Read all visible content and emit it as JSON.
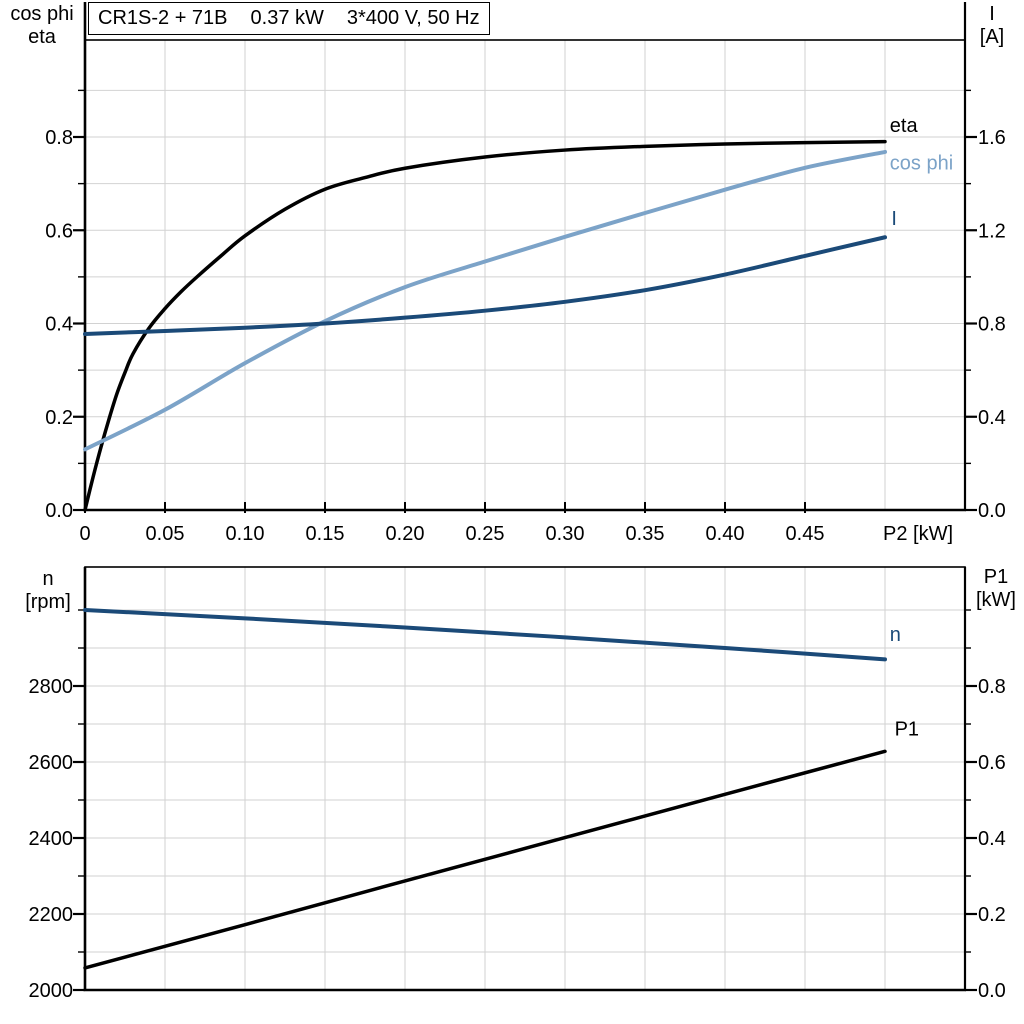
{
  "header": {
    "model": "CR1S-2 + 71B",
    "power": "0.37 kW",
    "supply": "3*400 V, 50 Hz"
  },
  "colors": {
    "curve_black": "#000000",
    "curve_dark_blue": "#1b4a78",
    "curve_light_blue": "#7ca3c8",
    "grid": "#d2d2d2",
    "axis": "#000000"
  },
  "chart_data": [
    {
      "type": "line",
      "position": "top",
      "x_axis": {
        "label": "P2 [kW]",
        "range": [
          0,
          0.55
        ],
        "grid_step": 0.05,
        "tick_values": [
          0,
          0.05,
          0.1,
          0.15,
          0.2,
          0.25,
          0.3,
          0.35,
          0.4,
          0.45
        ],
        "tick_labels": [
          "0",
          "0.05",
          "0.10",
          "0.15",
          "0.20",
          "0.25",
          "0.30",
          "0.35",
          "0.40",
          "0.45"
        ]
      },
      "left_axis": {
        "title_lines": [
          "cos phi",
          "eta"
        ],
        "range": [
          0,
          1.0
        ],
        "tick_values": [
          0.0,
          0.2,
          0.4,
          0.6,
          0.8
        ],
        "tick_labels": [
          "0.0",
          "0.2",
          "0.4",
          "0.6",
          "0.8"
        ],
        "minor_step": 0.1
      },
      "right_axis": {
        "title_lines": [
          "I",
          "[A]"
        ],
        "range": [
          0,
          2.0
        ],
        "tick_values": [
          0.0,
          0.4,
          0.8,
          1.2,
          1.6
        ],
        "tick_labels": [
          "0.0",
          "0.4",
          "0.8",
          "1.2",
          "1.6"
        ],
        "minor_step": 0.2
      },
      "series": [
        {
          "name": "eta",
          "label": "eta",
          "axis": "left",
          "color": "#000000",
          "width": 3.5,
          "label_at": [
            0.503,
            0.826
          ],
          "points": [
            [
              0,
              0
            ],
            [
              0.005,
              0.07
            ],
            [
              0.01,
              0.135
            ],
            [
              0.015,
              0.195
            ],
            [
              0.02,
              0.25
            ],
            [
              0.025,
              0.295
            ],
            [
              0.03,
              0.335
            ],
            [
              0.04,
              0.39
            ],
            [
              0.05,
              0.432
            ],
            [
              0.06,
              0.468
            ],
            [
              0.07,
              0.5
            ],
            [
              0.085,
              0.545
            ],
            [
              0.1,
              0.588
            ],
            [
              0.125,
              0.645
            ],
            [
              0.15,
              0.688
            ],
            [
              0.175,
              0.713
            ],
            [
              0.2,
              0.733
            ],
            [
              0.25,
              0.757
            ],
            [
              0.3,
              0.772
            ],
            [
              0.35,
              0.78
            ],
            [
              0.4,
              0.785
            ],
            [
              0.45,
              0.788
            ],
            [
              0.5,
              0.79
            ]
          ]
        },
        {
          "name": "cos_phi",
          "label": "cos phi",
          "axis": "left",
          "color": "#7ca3c8",
          "width": 4,
          "label_at": [
            0.503,
            0.745
          ],
          "points": [
            [
              0,
              0.13
            ],
            [
              0.05,
              0.215
            ],
            [
              0.1,
              0.315
            ],
            [
              0.15,
              0.405
            ],
            [
              0.2,
              0.478
            ],
            [
              0.25,
              0.533
            ],
            [
              0.3,
              0.586
            ],
            [
              0.35,
              0.637
            ],
            [
              0.4,
              0.687
            ],
            [
              0.45,
              0.734
            ],
            [
              0.5,
              0.768
            ]
          ]
        },
        {
          "name": "I",
          "label": "I",
          "axis": "right",
          "color": "#1b4a78",
          "width": 4,
          "label_at": [
            0.504,
            1.253
          ],
          "points": [
            [
              0,
              0.755
            ],
            [
              0.05,
              0.768
            ],
            [
              0.1,
              0.782
            ],
            [
              0.15,
              0.8
            ],
            [
              0.2,
              0.825
            ],
            [
              0.25,
              0.855
            ],
            [
              0.3,
              0.893
            ],
            [
              0.35,
              0.943
            ],
            [
              0.4,
              1.01
            ],
            [
              0.45,
              1.09
            ],
            [
              0.5,
              1.17
            ]
          ]
        }
      ]
    },
    {
      "type": "line",
      "position": "bottom",
      "x_axis": {
        "label": "",
        "range": [
          0,
          0.55
        ],
        "grid_step": 0.05,
        "tick_values": [],
        "tick_labels": []
      },
      "left_axis": {
        "title_lines": [
          "n",
          "[rpm]"
        ],
        "range": [
          2000,
          3100
        ],
        "tick_values": [
          2000,
          2200,
          2400,
          2600,
          2800
        ],
        "tick_labels": [
          "2000",
          "2200",
          "2400",
          "2600",
          "2800"
        ],
        "minor_step": 100
      },
      "right_axis": {
        "title_lines": [
          "P1",
          "[kW]"
        ],
        "range": [
          0,
          1.1
        ],
        "tick_values": [
          0.0,
          0.2,
          0.4,
          0.6,
          0.8
        ],
        "tick_labels": [
          "0.0",
          "0.2",
          "0.4",
          "0.6",
          "0.8"
        ],
        "minor_step": 0.1
      },
      "series": [
        {
          "name": "n",
          "label": "n",
          "axis": "left",
          "color": "#1b4a78",
          "width": 4,
          "label_at": [
            0.503,
            2937
          ],
          "points": [
            [
              0,
              3000
            ],
            [
              0.1,
              2978
            ],
            [
              0.2,
              2954
            ],
            [
              0.3,
              2928
            ],
            [
              0.4,
              2900
            ],
            [
              0.5,
              2870
            ]
          ]
        },
        {
          "name": "P1",
          "label": "P1",
          "axis": "right",
          "color": "#000000",
          "width": 3.5,
          "label_at": [
            0.506,
            0.688
          ],
          "points": [
            [
              0,
              0.058
            ],
            [
              0.1,
              0.172
            ],
            [
              0.2,
              0.287
            ],
            [
              0.3,
              0.401
            ],
            [
              0.4,
              0.515
            ],
            [
              0.5,
              0.628
            ]
          ]
        }
      ]
    }
  ]
}
